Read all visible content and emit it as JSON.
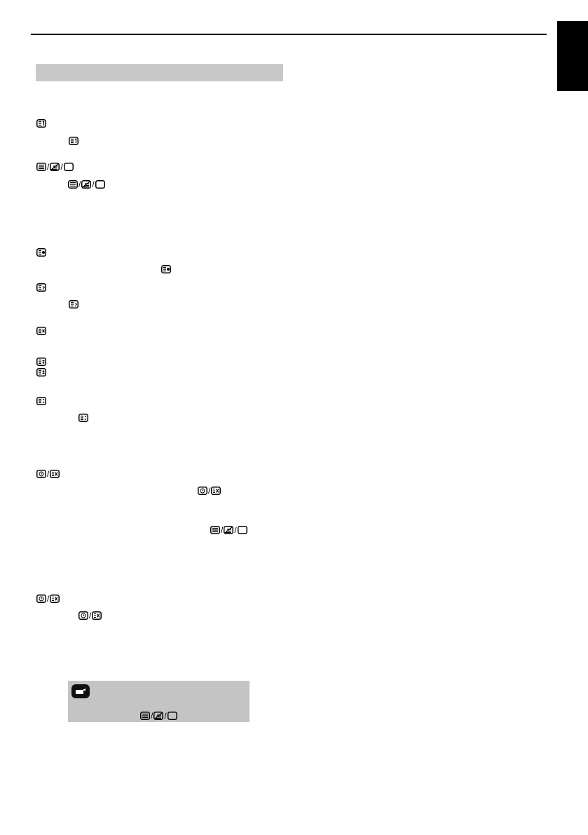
{
  "icons": {
    "index": "teletext-index-icon",
    "text_mix_clear": [
      "teletext-text-icon",
      "teletext-mix-icon",
      "teletext-clear-icon"
    ],
    "hold": "teletext-hold-icon",
    "reveal": "teletext-reveal-icon",
    "cancel": "teletext-cancel-icon",
    "subpage": "teletext-subpage-icon",
    "size": "teletext-size-icon",
    "clock_exit": [
      "teletext-clock-icon",
      "teletext-exit-icon"
    ],
    "note": "pointing-hand-icon"
  },
  "separator": "/",
  "colors": {
    "section_bar": "#c8c8c8",
    "note_bg": "#c4c4c4",
    "tab": "#000000"
  }
}
